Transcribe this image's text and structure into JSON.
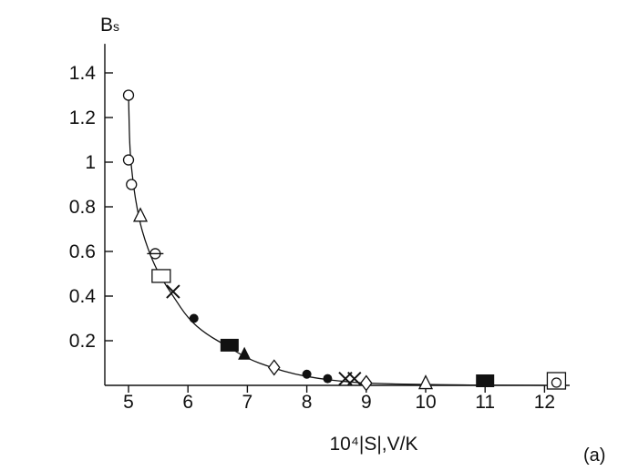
{
  "chart_data": {
    "type": "scatter",
    "ylabel": "Bs",
    "ylabel_main": "B",
    "ylabel_sub": "s",
    "xlabel": "10⁴|S|,V/K",
    "panel_label": "(a)",
    "xlim": [
      4.7,
      12.3
    ],
    "ylim": [
      0,
      1.5
    ],
    "x_ticks": [
      5,
      6,
      7,
      8,
      9,
      10,
      11,
      12
    ],
    "y_ticks": [
      0.2,
      0.4,
      0.6,
      0.8,
      1,
      1.2,
      1.4
    ],
    "x_tick_labels": [
      "5",
      "6",
      "7",
      "8",
      "9",
      "10",
      "11",
      "12"
    ],
    "y_tick_labels": [
      "0.2",
      "0.4",
      "0.6",
      "0.8",
      "1",
      "1.2",
      "1.4"
    ],
    "grid": false,
    "legend": "none",
    "curve": {
      "x": [
        5.0,
        5.02,
        5.08,
        5.15,
        5.25,
        5.4,
        5.55,
        5.75,
        6.0,
        6.3,
        6.7,
        7.0,
        7.4,
        7.8,
        8.2,
        8.6,
        9.0,
        9.5,
        10.0,
        10.5,
        11.0,
        11.5,
        12.0
      ],
      "y": [
        1.3,
        1.05,
        0.9,
        0.78,
        0.67,
        0.56,
        0.48,
        0.4,
        0.3,
        0.23,
        0.17,
        0.12,
        0.08,
        0.05,
        0.03,
        0.018,
        0.01,
        0.006,
        0.004,
        0.002,
        0.001,
        0.001,
        0.0
      ]
    },
    "series": [
      {
        "marker": "open-circle",
        "x": [
          5.0,
          5.0,
          5.05
        ],
        "y": [
          1.3,
          1.01,
          0.9
        ]
      },
      {
        "marker": "open-triangle",
        "x": [
          5.2,
          10.0
        ],
        "y": [
          0.76,
          0.01
        ]
      },
      {
        "marker": "crossed-circle",
        "x": [
          5.45
        ],
        "y": [
          0.59
        ]
      },
      {
        "marker": "open-square",
        "x": [
          5.55
        ],
        "y": [
          0.49
        ]
      },
      {
        "marker": "cross",
        "x": [
          5.75,
          8.65,
          8.8
        ],
        "y": [
          0.42,
          0.03,
          0.03
        ]
      },
      {
        "marker": "filled-circle",
        "x": [
          6.1,
          8.0,
          8.35
        ],
        "y": [
          0.3,
          0.05,
          0.03
        ]
      },
      {
        "marker": "filled-square",
        "x": [
          6.7,
          11.0
        ],
        "y": [
          0.18,
          0.0
        ]
      },
      {
        "marker": "filled-triangle",
        "x": [
          6.95
        ],
        "y": [
          0.14
        ]
      },
      {
        "marker": "open-diamond",
        "x": [
          7.45,
          9.0
        ],
        "y": [
          0.08,
          0.01
        ]
      },
      {
        "marker": "square-with-circle",
        "x": [
          12.2
        ],
        "y": [
          0.0
        ]
      }
    ]
  }
}
